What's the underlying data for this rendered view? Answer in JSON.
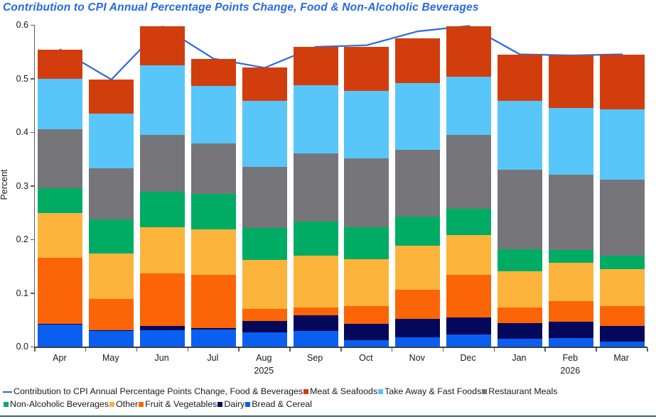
{
  "title": "Contribution to CPI Annual Percentage Points Change, Food & Non-Alcoholic Beverages",
  "colors": {
    "title_text": "#2468e8",
    "cpi_line": "#2e6ad8",
    "meat_seafoods": "#d23d0e",
    "take_away_fast_foods": "#58c6f8",
    "restaurant_meals": "#76767a",
    "non_alcoholic_beverages": "#00ac64",
    "other": "#fcb43c",
    "fruit_vegetables": "#fc6408",
    "dairy": "#04085a",
    "bread_cereal": "#0a5ff0",
    "axis": "#5a5a5a",
    "bottom_rule": "#2e6b63"
  },
  "chart_data": {
    "type": "bar",
    "stacked": true,
    "title": "Contribution to CPI Annual Percentage Points Change, Food & Non-Alcoholic Beverages",
    "xlabel": "",
    "ylabel": "Percent",
    "ylim": [
      0,
      0.6
    ],
    "yticks": [
      "0.0",
      "0.1",
      "0.2",
      "0.3",
      "0.4",
      "0.5",
      "0.6"
    ],
    "grid": false,
    "legend_position": "bottom",
    "categories": [
      "Apr",
      "May",
      "Jun",
      "Jul",
      "Aug",
      "Sep",
      "Oct",
      "Nov",
      "Dec",
      "Jan",
      "Feb",
      "Mar"
    ],
    "year_labels": [
      {
        "index": 4,
        "label": "2025"
      },
      {
        "index": 10,
        "label": "2026"
      }
    ],
    "series": [
      {
        "name": "Bread & Cereal",
        "color": "#0a5ff0",
        "values": [
          0.041,
          0.029,
          0.031,
          0.032,
          0.027,
          0.029,
          0.012,
          0.017,
          0.023,
          0.015,
          0.016,
          0.009
        ]
      },
      {
        "name": "Dairy",
        "color": "#04085a",
        "values": [
          0.001,
          0.001,
          0.007,
          0.002,
          0.021,
          0.03,
          0.03,
          0.035,
          0.031,
          0.029,
          0.03,
          0.03
        ]
      },
      {
        "name": "Fruit & Vegetables",
        "color": "#fc6408",
        "values": [
          0.124,
          0.059,
          0.099,
          0.1,
          0.022,
          0.014,
          0.034,
          0.054,
          0.08,
          0.029,
          0.039,
          0.037
        ]
      },
      {
        "name": "Other",
        "color": "#fcb43c",
        "values": [
          0.083,
          0.085,
          0.085,
          0.085,
          0.091,
          0.097,
          0.087,
          0.082,
          0.074,
          0.067,
          0.072,
          0.068
        ]
      },
      {
        "name": "Non-Alcoholic Beverages",
        "color": "#00ac64",
        "values": [
          0.046,
          0.063,
          0.067,
          0.066,
          0.06,
          0.063,
          0.059,
          0.055,
          0.049,
          0.041,
          0.023,
          0.025
        ]
      },
      {
        "name": "Restaurant Meals",
        "color": "#76767a",
        "values": [
          0.11,
          0.095,
          0.106,
          0.094,
          0.114,
          0.127,
          0.129,
          0.124,
          0.138,
          0.149,
          0.141,
          0.142
        ]
      },
      {
        "name": "Take Away & Fast Foods",
        "color": "#58c6f8",
        "values": [
          0.095,
          0.102,
          0.13,
          0.107,
          0.124,
          0.127,
          0.126,
          0.125,
          0.109,
          0.129,
          0.124,
          0.132
        ]
      },
      {
        "name": "Meat & Seafoods",
        "color": "#d23d0e",
        "values": [
          0.054,
          0.064,
          0.072,
          0.051,
          0.061,
          0.072,
          0.082,
          0.083,
          0.094,
          0.085,
          0.098,
          0.102
        ]
      }
    ],
    "line_series": {
      "name": "Contribution to CPI Annual Percentage Points Change, Food & Beverages",
      "color": "#2e6ad8",
      "values": [
        0.554,
        0.498,
        0.597,
        0.537,
        0.52,
        0.559,
        0.562,
        0.588,
        0.598,
        0.545,
        0.543,
        0.545
      ]
    }
  },
  "legend": {
    "rows": [
      [
        {
          "swatch": "line",
          "color": "#2e6ad8",
          "label": "Contribution to CPI Annual Percentage Points Change, Food & Beverages"
        },
        {
          "swatch": "square",
          "color": "#d23d0e",
          "label": "Meat & Seafoods"
        },
        {
          "swatch": "square",
          "color": "#58c6f8",
          "label": "Take Away & Fast Foods"
        },
        {
          "swatch": "square",
          "color": "#76767a",
          "label": "Restaurant Meals"
        }
      ],
      [
        {
          "swatch": "square",
          "color": "#00ac64",
          "label": "Non-Alcoholic Beverages"
        },
        {
          "swatch": "square",
          "color": "#fcb43c",
          "label": "Other"
        },
        {
          "swatch": "square",
          "color": "#fc6408",
          "label": "Fruit & Vegetables"
        },
        {
          "swatch": "square",
          "color": "#04085a",
          "label": "Dairy"
        },
        {
          "swatch": "square",
          "color": "#0a5ff0",
          "label": "Bread & Cereal"
        }
      ]
    ]
  }
}
